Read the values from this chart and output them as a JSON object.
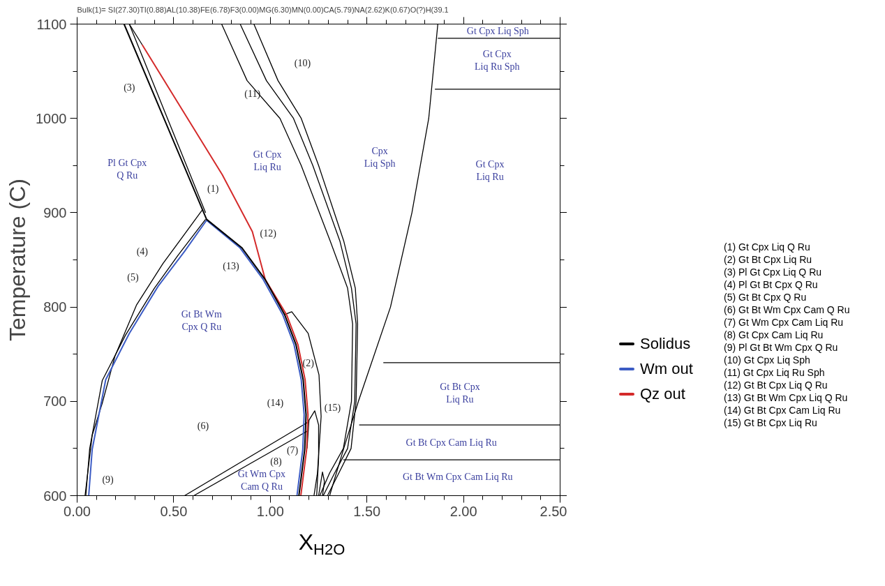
{
  "chart_data": {
    "type": "line",
    "title": "Bulk(1)= SI(27.30)TI(0.88)AL(10.38)FE(6.78)F3(0.00)MG(6.30)MN(0.00)CA(5.79)NA(2.62)K(0.67)O(?)H(39.1",
    "xlabel": "X$_{H2O}$",
    "ylabel": "Temperature (C)",
    "xlim": [
      0,
      2.5
    ],
    "ylim": [
      600,
      1100
    ],
    "xticks": [
      {
        "value": 0,
        "label": "0.00"
      },
      {
        "value": 0.1,
        "label": null
      },
      {
        "value": 0.2,
        "label": null
      },
      {
        "value": 0.3,
        "label": null
      },
      {
        "value": 0.4,
        "label": null
      },
      {
        "value": 0.5,
        "label": "0.50"
      },
      {
        "value": 0.6,
        "label": null
      },
      {
        "value": 0.7,
        "label": null
      },
      {
        "value": 0.8,
        "label": null
      },
      {
        "value": 0.9,
        "label": null
      },
      {
        "value": 1,
        "label": "1.00"
      },
      {
        "value": 1.1,
        "label": null
      },
      {
        "value": 1.2,
        "label": null
      },
      {
        "value": 1.3,
        "label": null
      },
      {
        "value": 1.4,
        "label": null
      },
      {
        "value": 1.5,
        "label": "1.50"
      },
      {
        "value": 1.6,
        "label": null
      },
      {
        "value": 1.7,
        "label": null
      },
      {
        "value": 1.8,
        "label": null
      },
      {
        "value": 1.9,
        "label": null
      },
      {
        "value": 2,
        "label": "2.00"
      },
      {
        "value": 2.1,
        "label": null
      },
      {
        "value": 2.2,
        "label": null
      },
      {
        "value": 2.3,
        "label": null
      },
      {
        "value": 2.4,
        "label": null
      },
      {
        "value": 2.5,
        "label": "2.50"
      }
    ],
    "yticks": [
      600,
      {
        "value": 650,
        "label": null
      },
      700,
      {
        "value": 750,
        "label": null
      },
      800,
      {
        "value": 850,
        "label": null
      },
      900,
      {
        "value": 950,
        "label": null
      },
      1000,
      {
        "value": 1050,
        "label": null
      },
      1100
    ],
    "grid": false,
    "legend": "right",
    "marker": "none",
    "line_style": "solid",
    "series": [
      {
        "color": "#000000",
        "x": [
          0.27,
          0.665
        ],
        "values": [
          1100,
          900
        ]
      },
      {
        "color": "#000000",
        "x": [
          0.27,
          0.337
        ],
        "values": [
          1100,
          1078
        ]
      },
      {
        "color": "#000000",
        "x": [
          0.648,
          0.444,
          0.307,
          0.196,
          0.13,
          0.078,
          0.041
        ],
        "values": [
          903,
          846,
          802,
          748,
          698,
          664,
          600
        ]
      },
      {
        "color": "#000000",
        "x": [
          0.665,
          0.53,
          0.4,
          0.25,
          0.13,
          0.065,
          0.045
        ],
        "values": [
          893,
          857,
          820,
          770,
          722,
          650,
          600
        ]
      },
      {
        "color": "#000000",
        "x": [
          0.748,
          0.88,
          1.05,
          1.16,
          1.31,
          1.4,
          1.426,
          1.42,
          1.378,
          1.307,
          1.256
        ],
        "values": [
          1100,
          1040,
          1000,
          950,
          870,
          820,
          782,
          700,
          650,
          624,
          600
        ]
      },
      {
        "color": "#000000",
        "x": [
          0.844,
          0.98,
          1.12,
          1.22,
          1.36,
          1.42,
          1.444,
          1.437,
          1.4,
          1.333,
          1.274
        ],
        "values": [
          1100,
          1040,
          1000,
          950,
          870,
          820,
          782,
          700,
          650,
          624,
          600
        ]
      },
      {
        "color": "#000000",
        "x": [
          0.915,
          1.04,
          1.16,
          1.25,
          1.38,
          1.44,
          1.452,
          1.444,
          1.418,
          1.355,
          1.296
        ],
        "values": [
          1100,
          1040,
          1000,
          950,
          870,
          820,
          782,
          700,
          650,
          624,
          600
        ]
      },
      {
        "color": "#000000",
        "x": [
          1.307,
          1.38,
          1.456,
          1.622,
          1.733,
          1.82,
          1.867
        ],
        "values": [
          600,
          650,
          700,
          800,
          900,
          1000,
          1100
        ]
      },
      {
        "color": "#000000",
        "x": [
          1.867,
          2.5
        ],
        "values": [
          1085,
          1085
        ]
      },
      {
        "color": "#000000",
        "x": [
          1.852,
          2.5
        ],
        "values": [
          1031,
          1031
        ]
      },
      {
        "color": "#000000",
        "x": [
          1.585,
          2.5
        ],
        "values": [
          741,
          741
        ]
      },
      {
        "color": "#000000",
        "x": [
          1.46,
          2.5
        ],
        "values": [
          675,
          675
        ]
      },
      {
        "color": "#000000",
        "x": [
          1.378,
          2.5
        ],
        "values": [
          638,
          638
        ]
      },
      {
        "color": "#000000",
        "x": [
          1.074,
          1.111,
          1.196,
          1.252,
          1.263,
          1.244,
          1.226
        ],
        "values": [
          792,
          795,
          772,
          728,
          684,
          624,
          600
        ]
      },
      {
        "color": "#000000",
        "x": [
          0.556,
          1.196
        ],
        "values": [
          600,
          678
        ]
      },
      {
        "color": "#000000",
        "x": [
          0.604,
          1.196
        ],
        "values": [
          600,
          669
        ]
      },
      {
        "color": "#000000",
        "x": [
          1.19,
          1.2,
          1.23,
          1.25,
          1.25,
          1.24
        ],
        "values": [
          650,
          680,
          690,
          675,
          640,
          600
        ]
      },
      {
        "color": "#000000",
        "x": [
          1.25,
          1.27,
          1.28,
          1.27
        ],
        "values": [
          600,
          625,
          615,
          600
        ]
      },
      {
        "name": "Qz out",
        "color": "#d42a2a",
        "x": [
          0.337,
          0.752,
          0.907,
          0.974,
          1.084,
          1.143,
          1.18,
          1.195,
          1.188,
          1.158
        ],
        "values": [
          1078,
          940,
          880,
          829,
          792,
          760,
          723,
          686,
          649,
          600
        ]
      },
      {
        "name": "Wm out",
        "color": "#3b5bc4",
        "x": [
          0.06,
          0.078,
          0.148,
          0.27,
          0.419,
          0.556,
          0.67,
          0.842,
          0.964,
          1.064,
          1.123,
          1.16,
          1.175,
          1.168,
          1.138
        ],
        "values": [
          600,
          649,
          723,
          772,
          822,
          859,
          892,
          863,
          829,
          792,
          760,
          723,
          686,
          649,
          600
        ]
      },
      {
        "name": "Solidus",
        "color": "#000000",
        "x": [
          0.243,
          0.67,
          0.852,
          0.974,
          1.074,
          1.133,
          1.17,
          1.185,
          1.178,
          1.148
        ],
        "values": [
          1100,
          893,
          863,
          829,
          792,
          760,
          723,
          686,
          649,
          600
        ]
      }
    ],
    "annotations": [
      "(3)",
      "(1)",
      "(4)",
      "(5)",
      "(9)",
      "(10)",
      "(11)",
      "(12)",
      "(13)",
      "(2)",
      "(14)",
      "(15)",
      "(6)",
      "(7)",
      "(8)",
      "Pl Gt Cpx\nQ Ru",
      "Gt Cpx\nLiq Ru",
      "Cpx\nLiq Sph",
      "Gt Cpx\nLiq Ru",
      "Gt Cpx Liq Sph",
      "Gt Cpx\nLiq Ru Sph",
      "Gt Bt Wm\nCpx Q Ru",
      "Gt Bt Cpx\nLiq Ru",
      "Gt Bt Cpx Cam Liq Ru",
      "Gt Bt Wm Cpx Cam Liq Ru",
      "Gt Wm Cpx\nCam Q Ru",
      "(1) Gt Cpx Liq Q Ru",
      "(2) Gt Bt Cpx Liq Ru",
      "(3) Pl Gt Cpx Liq Q Ru",
      "(4) Pl Gt Bt Cpx Q Ru",
      "(5) Gt Bt Cpx Q Ru",
      "(6) Gt Bt Wm Cpx Cam Q Ru",
      "(7) Gt Wm Cpx Cam Liq Ru",
      "(8) Gt Cpx Cam Liq Ru",
      "(9) Pl Gt Bt Wm Cpx Q Ru",
      "(10) Gt Cpx Liq Sph",
      "(11) Gt Cpx Liq Ru Sph",
      "(12) Gt Bt Cpx Liq Q Ru",
      "(13) Gt Bt Wm Cpx Liq Q Ru",
      "(14) Gt Bt Cpx Cam Liq Ru",
      "(15) Gt Bt Cpx Liq Ru"
    ]
  }
}
